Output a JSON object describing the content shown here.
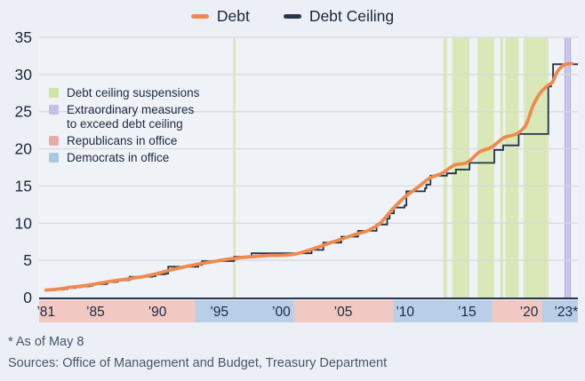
{
  "colors": {
    "page_bg": "#edeff6",
    "plot_bg": "#eff2f7",
    "grid": "#d5d9e0",
    "axis": "#22334a",
    "text": "#1b2737",
    "tick_text": "#1c2940",
    "footer_text": "#46566b",
    "debt_line": "#ef8a4d",
    "ceiling_line": "#203349",
    "suspension_band": "#d9e8b6",
    "extraordinary_band": "#c9c5ec",
    "republican_band": "#f2c8c2",
    "democrat_band": "#b9cfe8"
  },
  "legend_top": {
    "items": [
      {
        "label": "Debt",
        "color": "#ef8a4d"
      },
      {
        "label": "Debt Ceiling",
        "color": "#26374d"
      }
    ]
  },
  "legend_inner": {
    "items": [
      {
        "key": "suspensions",
        "label": "Debt ceiling suspensions",
        "color": "#cfe3a3"
      },
      {
        "key": "extraordinary-measures",
        "label": "Extraordinary measures\nto exceed debt ceiling",
        "color": "#c3bfe8"
      },
      {
        "key": "republicans",
        "label": "Republicans in office",
        "color": "#e9aba7"
      },
      {
        "key": "democrats",
        "label": "Democrats in office",
        "color": "#a9c6e4"
      }
    ]
  },
  "footnote": "* As of May 8",
  "sources": "Sources: Office of Management and Budget, Treasury Department",
  "chart_data": {
    "type": "line",
    "unit": "trillions of US dollars",
    "x_domain": [
      1980.45,
      2023.95
    ],
    "y_domain": [
      0,
      35
    ],
    "grid": "horizontal",
    "legend_position": "top-center plus inset top-left",
    "y_ticks": [
      0,
      5,
      10,
      15,
      20,
      25,
      30,
      35
    ],
    "x_ticks": [
      {
        "x": 1981,
        "label": "’81"
      },
      {
        "x": 1985,
        "label": "’85"
      },
      {
        "x": 1990,
        "label": "’90"
      },
      {
        "x": 1995,
        "label": "’95"
      },
      {
        "x": 2000,
        "label": "’00"
      },
      {
        "x": 2005,
        "label": "’05"
      },
      {
        "x": 2010,
        "label": "’10"
      },
      {
        "x": 2015,
        "label": "’15"
      },
      {
        "x": 2020,
        "label": "’20"
      },
      {
        "x": 2023,
        "label": "’23*"
      }
    ],
    "series": [
      {
        "name": "Debt",
        "style": "smooth",
        "color": "#ef8a4d",
        "points": [
          [
            1981,
            1.0
          ],
          [
            1982,
            1.14
          ],
          [
            1983,
            1.38
          ],
          [
            1984,
            1.57
          ],
          [
            1985,
            1.82
          ],
          [
            1986,
            2.13
          ],
          [
            1987,
            2.35
          ],
          [
            1988,
            2.6
          ],
          [
            1989,
            2.86
          ],
          [
            1990,
            3.23
          ],
          [
            1991,
            3.67
          ],
          [
            1992,
            4.06
          ],
          [
            1993,
            4.41
          ],
          [
            1994,
            4.69
          ],
          [
            1995,
            4.97
          ],
          [
            1996,
            5.22
          ],
          [
            1997,
            5.41
          ],
          [
            1998,
            5.53
          ],
          [
            1999,
            5.66
          ],
          [
            2000,
            5.67
          ],
          [
            2001,
            5.81
          ],
          [
            2002,
            6.23
          ],
          [
            2003,
            6.78
          ],
          [
            2004,
            7.38
          ],
          [
            2005,
            7.93
          ],
          [
            2006,
            8.51
          ],
          [
            2007,
            9.01
          ],
          [
            2008,
            10.02
          ],
          [
            2009,
            11.91
          ],
          [
            2010,
            13.56
          ],
          [
            2011,
            14.79
          ],
          [
            2012,
            16.07
          ],
          [
            2013,
            16.74
          ],
          [
            2014,
            17.82
          ],
          [
            2015,
            18.15
          ],
          [
            2016,
            19.57
          ],
          [
            2017,
            20.24
          ],
          [
            2018,
            21.52
          ],
          [
            2019,
            22.0
          ],
          [
            2019.75,
            23.2
          ],
          [
            2020.3,
            25.7
          ],
          [
            2020.75,
            27.1
          ],
          [
            2021,
            27.7
          ],
          [
            2021.5,
            28.5
          ],
          [
            2021.9,
            29.0
          ],
          [
            2022.3,
            30.4
          ],
          [
            2022.75,
            31.2
          ],
          [
            2023,
            31.4
          ],
          [
            2023.45,
            31.46
          ]
        ]
      },
      {
        "name": "Debt Ceiling",
        "style": "step",
        "color": "#203349",
        "points": [
          [
            1981,
            0.99
          ],
          [
            1981.75,
            1.08
          ],
          [
            1982.45,
            1.14
          ],
          [
            1982.72,
            1.29
          ],
          [
            1983.4,
            1.39
          ],
          [
            1983.85,
            1.49
          ],
          [
            1984.4,
            1.52
          ],
          [
            1984.55,
            1.57
          ],
          [
            1984.75,
            1.82
          ],
          [
            1985.9,
            1.9
          ],
          [
            1985.97,
            2.08
          ],
          [
            1986.6,
            2.11
          ],
          [
            1986.8,
            2.3
          ],
          [
            1987.4,
            2.32
          ],
          [
            1987.6,
            2.35
          ],
          [
            1987.75,
            2.8
          ],
          [
            1989.6,
            2.87
          ],
          [
            1989.85,
            3.12
          ],
          [
            1990.6,
            3.2
          ],
          [
            1990.78,
            3.23
          ],
          [
            1990.87,
            4.15
          ],
          [
            1993.3,
            4.37
          ],
          [
            1993.6,
            4.9
          ],
          [
            1996.2,
            5.5
          ],
          [
            1997.6,
            5.95
          ],
          [
            2002.45,
            6.4
          ],
          [
            2003.4,
            7.38
          ],
          [
            2004.85,
            8.18
          ],
          [
            2006.2,
            8.97
          ],
          [
            2007.7,
            9.82
          ],
          [
            2008.55,
            10.62
          ],
          [
            2008.75,
            11.32
          ],
          [
            2009.1,
            12.1
          ],
          [
            2009.95,
            12.39
          ],
          [
            2010.1,
            14.29
          ],
          [
            2011.6,
            14.69
          ],
          [
            2011.72,
            15.19
          ],
          [
            2012.05,
            16.39
          ],
          [
            2013.38,
            16.7
          ],
          [
            2014.1,
            17.21
          ],
          [
            2015.2,
            18.11
          ],
          [
            2017.2,
            19.85
          ],
          [
            2017.92,
            20.46
          ],
          [
            2019.17,
            21.99
          ],
          [
            2021.56,
            28.4
          ],
          [
            2021.78,
            28.89
          ],
          [
            2021.95,
            31.38
          ],
          [
            2023.95,
            31.38
          ]
        ]
      }
    ],
    "bands": {
      "suspensions": [
        [
          1996.12,
          1996.3
        ],
        [
          2013.09,
          2013.38
        ],
        [
          2013.79,
          2015.2
        ],
        [
          2015.85,
          2017.19
        ],
        [
          2017.67,
          2017.92
        ],
        [
          2018.09,
          2019.17
        ],
        [
          2019.58,
          2021.56
        ]
      ],
      "extraordinary_measures": [
        [
          2022.9,
          2023.35
        ]
      ],
      "party": [
        {
          "party": "Republicans",
          "span": [
            1980.45,
            1993.05
          ]
        },
        {
          "party": "Democrats",
          "span": [
            1993.05,
            2001.05
          ]
        },
        {
          "party": "Republicans",
          "span": [
            2001.05,
            2009.05
          ]
        },
        {
          "party": "Democrats",
          "span": [
            2009.05,
            2017.05
          ]
        },
        {
          "party": "Republicans",
          "span": [
            2017.05,
            2021.05
          ]
        },
        {
          "party": "Democrats",
          "span": [
            2021.05,
            2023.95
          ]
        }
      ]
    }
  }
}
